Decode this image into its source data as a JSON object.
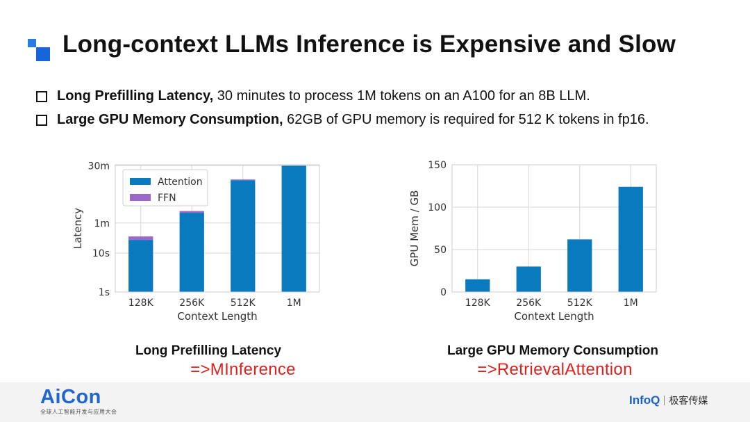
{
  "slide": {
    "title": "Long-context LLMs Inference is Expensive and Slow",
    "bullets": [
      {
        "bold": "Long Prefilling Latency,",
        "text": " 30 minutes to process 1M tokens on an A100 for an 8B LLM."
      },
      {
        "bold": "Large GPU Memory Consumption,",
        "text": " 62GB of GPU memory is required for 512 K tokens in fp16."
      }
    ],
    "captions": {
      "left": "Long Prefilling Latency",
      "left_red": "=>MInference",
      "right": "Large GPU Memory Consumption",
      "right_red": "=>RetrievalAttention"
    },
    "footer": {
      "left_brand": "AiCon",
      "left_sub": "全球人工智能开发与应用大会",
      "right_brand": "InfoQ",
      "right_cn": "极客传媒"
    },
    "colors": {
      "attention": "#0a7abf",
      "ffn": "#9b68c9",
      "accent": "#1f66d1",
      "red": "#e0201c"
    }
  },
  "chart_data": [
    {
      "type": "bar",
      "stacked": true,
      "xlabel": "Context Length",
      "ylabel": "Latency",
      "categories": [
        "128K",
        "256K",
        "512K",
        "1M"
      ],
      "yscale": "log",
      "yunit": "seconds",
      "yticks": [
        1,
        10,
        60,
        1800
      ],
      "ytick_labels": [
        "1s",
        "10s",
        "1m",
        "30m"
      ],
      "ylim": [
        1,
        1900
      ],
      "legend_position": "top-left",
      "grid": true,
      "series": [
        {
          "name": "Attention",
          "values": [
            22,
            110,
            760,
            1800
          ]
        },
        {
          "name": "FFN",
          "values": [
            5,
            12,
            34,
            0
          ]
        }
      ]
    },
    {
      "type": "bar",
      "xlabel": "Context Length",
      "ylabel": "GPU Mem / GB",
      "categories": [
        "128K",
        "256K",
        "512K",
        "1M"
      ],
      "yticks": [
        0,
        50,
        100,
        150
      ],
      "ylim": [
        0,
        150
      ],
      "grid": true,
      "series": [
        {
          "values": [
            15,
            30,
            62,
            124
          ]
        }
      ]
    }
  ]
}
